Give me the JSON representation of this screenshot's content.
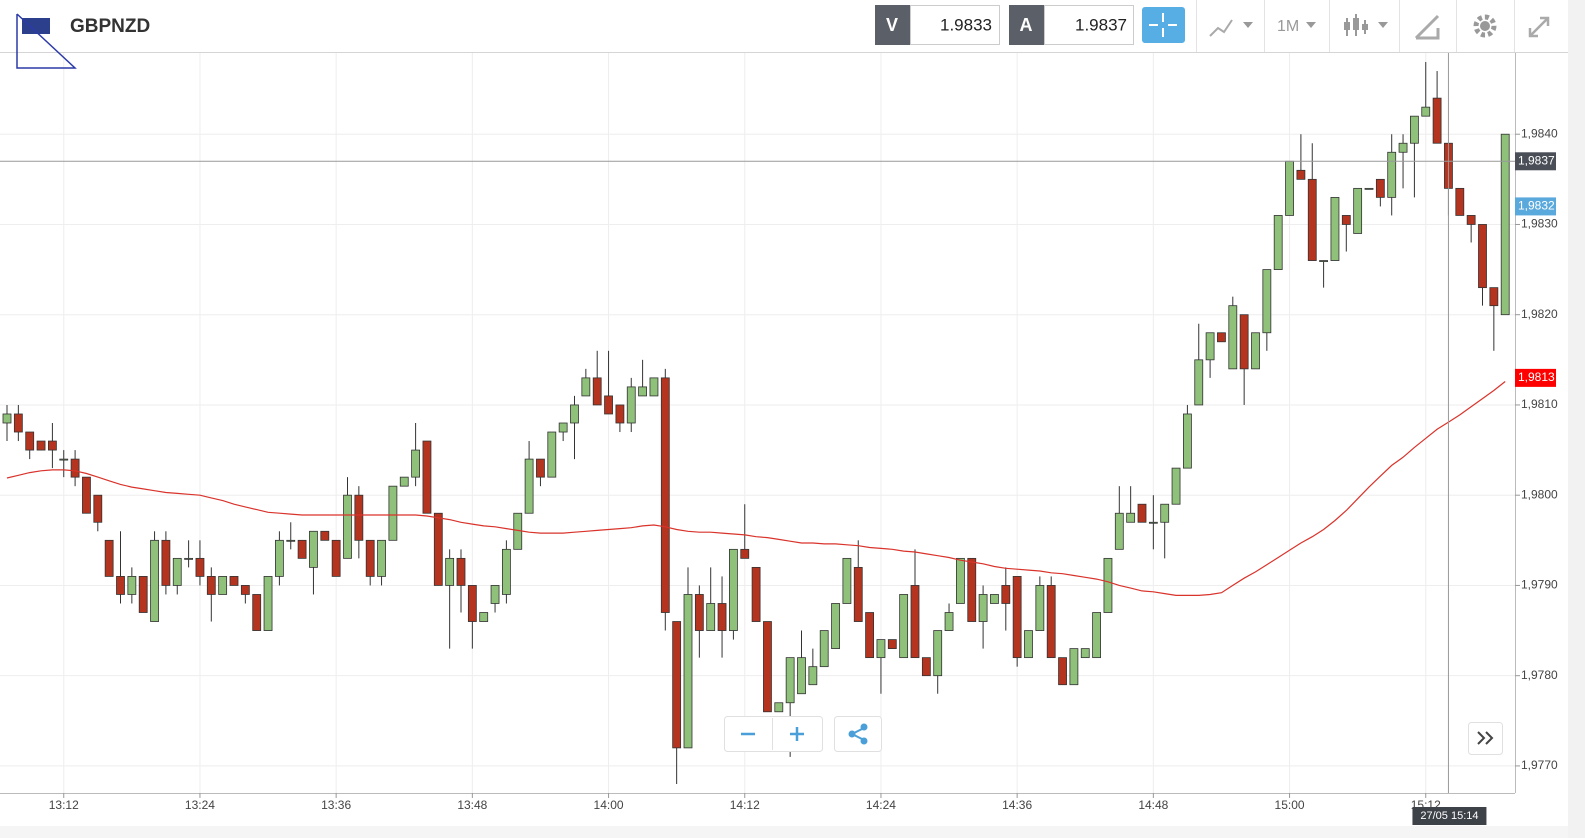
{
  "chart_data": {
    "type": "candlestick",
    "title": "GBPNZD",
    "bid_label": "V",
    "bid": 1.9833,
    "ask_label": "A",
    "ask": 1.9837,
    "timeframe": "1M",
    "up_color": "#8fc17a",
    "down_color": "#b5341f",
    "x": [
      "13:07",
      "13:08",
      "13:09",
      "13:10",
      "13:11",
      "13:12",
      "13:13",
      "13:14",
      "13:15",
      "13:16",
      "13:17",
      "13:18",
      "13:19",
      "13:20",
      "13:21",
      "13:22",
      "13:23",
      "13:24",
      "13:25",
      "13:26",
      "13:27",
      "13:28",
      "13:29",
      "13:30",
      "13:31",
      "13:32",
      "13:33",
      "13:34",
      "13:35",
      "13:36",
      "13:37",
      "13:38",
      "13:39",
      "13:40",
      "13:41",
      "13:42",
      "13:43",
      "13:44",
      "13:45",
      "13:46",
      "13:47",
      "13:48",
      "13:49",
      "13:50",
      "13:51",
      "13:52",
      "13:53",
      "13:54",
      "13:55",
      "13:56",
      "13:57",
      "13:58",
      "13:59",
      "14:00",
      "14:01",
      "14:02",
      "14:03",
      "14:04",
      "14:05",
      "14:06",
      "14:07",
      "14:08",
      "14:09",
      "14:10",
      "14:11",
      "14:12",
      "14:13",
      "14:14",
      "14:15",
      "14:16",
      "14:17",
      "14:18",
      "14:19",
      "14:20",
      "14:21",
      "14:22",
      "14:23",
      "14:24",
      "14:25",
      "14:26",
      "14:27",
      "14:28",
      "14:29",
      "14:30",
      "14:31",
      "14:32",
      "14:33",
      "14:34",
      "14:35",
      "14:36",
      "14:37",
      "14:38",
      "14:39",
      "14:40",
      "14:41",
      "14:42",
      "14:43",
      "14:44",
      "14:45",
      "14:46",
      "14:47",
      "14:48",
      "14:49",
      "14:50",
      "14:51",
      "14:52",
      "14:53",
      "14:54",
      "14:55",
      "14:56",
      "14:57",
      "14:58",
      "14:59",
      "15:00",
      "15:01",
      "15:02",
      "15:03",
      "15:04",
      "15:05",
      "15:06",
      "15:07",
      "15:08",
      "15:09",
      "15:10",
      "15:11",
      "15:12",
      "15:13",
      "15:14",
      "15:15",
      "15:16",
      "15:17",
      "15:18",
      "15:19"
    ],
    "open": [
      1.9808,
      1.9809,
      1.9807,
      1.9806,
      1.9806,
      1.9804,
      1.9804,
      1.9802,
      1.98,
      1.9795,
      1.9791,
      1.9789,
      1.9791,
      1.9786,
      1.9795,
      1.979,
      1.9793,
      1.9793,
      1.9791,
      1.9789,
      1.9791,
      1.979,
      1.9789,
      1.9785,
      1.9791,
      1.9795,
      1.9795,
      1.9792,
      1.9796,
      1.9795,
      1.9793,
      1.98,
      1.9795,
      1.9791,
      1.9795,
      1.9801,
      1.9802,
      1.9806,
      1.9798,
      1.979,
      1.9793,
      1.979,
      1.9786,
      1.9788,
      1.9789,
      1.9794,
      1.9798,
      1.9804,
      1.9802,
      1.9807,
      1.9808,
      1.9811,
      1.9813,
      1.9811,
      1.981,
      1.9808,
      1.9811,
      1.9811,
      1.9813,
      1.9786,
      1.9772,
      1.9789,
      1.9785,
      1.9788,
      1.9785,
      1.9794,
      1.9792,
      1.9786,
      1.9776,
      1.9777,
      1.9778,
      1.9779,
      1.9781,
      1.9783,
      1.9788,
      1.9792,
      1.9787,
      1.9782,
      1.9784,
      1.9782,
      1.979,
      1.9782,
      1.978,
      1.9785,
      1.9788,
      1.9793,
      1.9786,
      1.9788,
      1.979,
      1.9791,
      1.9782,
      1.9785,
      1.979,
      1.9782,
      1.9779,
      1.9782,
      1.9782,
      1.9787,
      1.9794,
      1.9797,
      1.9799,
      1.9797,
      1.9797,
      1.9799,
      1.9803,
      1.981,
      1.9815,
      1.9818,
      1.9814,
      1.982,
      1.9814,
      1.9818,
      1.9825,
      1.9831,
      1.9836,
      1.9835,
      1.9826,
      1.9826,
      1.9831,
      1.9829,
      1.9834,
      1.9835,
      1.9833,
      1.9838,
      1.9839,
      1.9842,
      1.9844,
      1.9839,
      1.9834,
      1.9831,
      1.983,
      1.9823,
      1.982
    ],
    "high": [
      1.981,
      1.981,
      1.9807,
      1.9806,
      1.9808,
      1.9805,
      1.9805,
      1.9802,
      1.98,
      1.9795,
      1.9796,
      1.9792,
      1.9791,
      1.9796,
      1.9796,
      1.9793,
      1.9795,
      1.9795,
      1.9792,
      1.9791,
      1.9791,
      1.979,
      1.9789,
      1.9791,
      1.9796,
      1.9797,
      1.9795,
      1.9796,
      1.9796,
      1.9795,
      1.9802,
      1.9801,
      1.9795,
      1.9795,
      1.9801,
      1.9802,
      1.9808,
      1.9806,
      1.9798,
      1.9794,
      1.9794,
      1.979,
      1.9787,
      1.979,
      1.9795,
      1.9798,
      1.9806,
      1.9804,
      1.9807,
      1.9808,
      1.9811,
      1.9814,
      1.9816,
      1.9816,
      1.981,
      1.9813,
      1.9815,
      1.9813,
      1.9814,
      1.9786,
      1.9792,
      1.979,
      1.9792,
      1.9791,
      1.9794,
      1.9799,
      1.9792,
      1.9786,
      1.9777,
      1.9782,
      1.9785,
      1.9783,
      1.9785,
      1.9788,
      1.9793,
      1.9795,
      1.9787,
      1.9784,
      1.9784,
      1.9789,
      1.9794,
      1.9782,
      1.9785,
      1.9788,
      1.9793,
      1.9793,
      1.979,
      1.9789,
      1.9792,
      1.9791,
      1.9785,
      1.9791,
      1.9791,
      1.9782,
      1.9783,
      1.9783,
      1.9787,
      1.9793,
      1.9801,
      1.9801,
      1.9799,
      1.98,
      1.9799,
      1.9803,
      1.981,
      1.9819,
      1.9818,
      1.9818,
      1.9822,
      1.982,
      1.9818,
      1.9825,
      1.9831,
      1.9837,
      1.984,
      1.9839,
      1.9826,
      1.9833,
      1.9831,
      1.9834,
      1.9834,
      1.9835,
      1.984,
      1.984,
      1.9842,
      1.9848,
      1.9847,
      1.9839,
      1.9834,
      1.9831,
      1.983,
      1.9823,
      1.984
    ],
    "low": [
      1.9806,
      1.9806,
      1.9804,
      1.9805,
      1.9803,
      1.9802,
      1.9801,
      1.9798,
      1.9796,
      1.9791,
      1.9788,
      1.9788,
      1.9787,
      1.9786,
      1.9789,
      1.9789,
      1.9792,
      1.979,
      1.9786,
      1.9789,
      1.979,
      1.9788,
      1.9785,
      1.9785,
      1.979,
      1.9794,
      1.9793,
      1.9789,
      1.9795,
      1.9791,
      1.9793,
      1.9793,
      1.979,
      1.979,
      1.9795,
      1.9801,
      1.9801,
      1.9798,
      1.979,
      1.9783,
      1.9787,
      1.9783,
      1.9786,
      1.9787,
      1.9788,
      1.9794,
      1.9798,
      1.9801,
      1.9802,
      1.9806,
      1.9804,
      1.9811,
      1.981,
      1.9809,
      1.9807,
      1.9807,
      1.9811,
      1.9811,
      1.9785,
      1.9768,
      1.9772,
      1.9782,
      1.9785,
      1.9782,
      1.9784,
      1.9793,
      1.9786,
      1.9776,
      1.9776,
      1.9771,
      1.9778,
      1.9779,
      1.9781,
      1.9783,
      1.9788,
      1.9786,
      1.9782,
      1.9778,
      1.9783,
      1.9782,
      1.9782,
      1.978,
      1.9778,
      1.9785,
      1.9788,
      1.9786,
      1.9783,
      1.9788,
      1.9785,
      1.9781,
      1.9782,
      1.9785,
      1.9782,
      1.9779,
      1.9779,
      1.9782,
      1.9782,
      1.9787,
      1.9794,
      1.9797,
      1.9797,
      1.9794,
      1.9793,
      1.9799,
      1.9803,
      1.981,
      1.9813,
      1.9817,
      1.9814,
      1.981,
      1.9814,
      1.9816,
      1.9825,
      1.9831,
      1.9835,
      1.9826,
      1.9823,
      1.9826,
      1.9827,
      1.9829,
      1.9834,
      1.9832,
      1.9831,
      1.9834,
      1.9833,
      1.9842,
      1.9839,
      1.9831,
      1.9831,
      1.9828,
      1.9821,
      1.9816,
      1.982
    ],
    "close": [
      1.9809,
      1.9807,
      1.9805,
      1.9805,
      1.9805,
      1.9804,
      1.9802,
      1.9798,
      1.9797,
      1.9791,
      1.9789,
      1.9791,
      1.9787,
      1.9795,
      1.979,
      1.9793,
      1.9793,
      1.9791,
      1.9789,
      1.9791,
      1.979,
      1.9789,
      1.9785,
      1.9791,
      1.9795,
      1.9795,
      1.9793,
      1.9796,
      1.9795,
      1.9791,
      1.98,
      1.9795,
      1.9791,
      1.9795,
      1.9801,
      1.9802,
      1.9805,
      1.9798,
      1.979,
      1.9793,
      1.979,
      1.9786,
      1.9787,
      1.979,
      1.9794,
      1.9798,
      1.9804,
      1.9802,
      1.9807,
      1.9808,
      1.981,
      1.9813,
      1.981,
      1.9809,
      1.9808,
      1.9812,
      1.9812,
      1.9813,
      1.9787,
      1.9772,
      1.9789,
      1.9785,
      1.9788,
      1.9785,
      1.9794,
      1.9793,
      1.9786,
      1.9776,
      1.9777,
      1.9782,
      1.9782,
      1.9781,
      1.9785,
      1.9788,
      1.9793,
      1.9786,
      1.9782,
      1.9784,
      1.9783,
      1.9789,
      1.9782,
      1.978,
      1.9785,
      1.9787,
      1.9793,
      1.9786,
      1.9789,
      1.9789,
      1.9788,
      1.9782,
      1.9785,
      1.979,
      1.9782,
      1.9779,
      1.9783,
      1.9783,
      1.9787,
      1.9793,
      1.9798,
      1.9798,
      1.9797,
      1.9797,
      1.9799,
      1.9803,
      1.9809,
      1.9815,
      1.9818,
      1.9817,
      1.9821,
      1.9814,
      1.9818,
      1.9825,
      1.9831,
      1.9837,
      1.9835,
      1.9826,
      1.9826,
      1.9833,
      1.983,
      1.9834,
      1.9834,
      1.9833,
      1.9838,
      1.9839,
      1.9842,
      1.9843,
      1.9839,
      1.9834,
      1.9831,
      1.983,
      1.9823,
      1.9821,
      1.984
    ],
    "moving_average": {
      "color": "#d9332b",
      "values": [
        1.98019,
        1.98022,
        1.98025,
        1.98027,
        1.98028,
        1.98028,
        1.98027,
        1.98024,
        1.9802,
        1.98016,
        1.98012,
        1.98009,
        1.98007,
        1.98005,
        1.98003,
        1.98002,
        1.98001,
        1.98,
        1.97997,
        1.97994,
        1.9799,
        1.97987,
        1.97984,
        1.97981,
        1.9798,
        1.97979,
        1.97978,
        1.97978,
        1.97978,
        1.97978,
        1.97978,
        1.97978,
        1.97978,
        1.97978,
        1.97978,
        1.97978,
        1.97978,
        1.97977,
        1.97975,
        1.97973,
        1.9797,
        1.97968,
        1.97966,
        1.97965,
        1.97963,
        1.97961,
        1.97959,
        1.97958,
        1.97958,
        1.97958,
        1.97959,
        1.9796,
        1.97961,
        1.97962,
        1.97963,
        1.97964,
        1.97966,
        1.97967,
        1.97965,
        1.97962,
        1.9796,
        1.97959,
        1.97959,
        1.97958,
        1.97957,
        1.97956,
        1.97954,
        1.97953,
        1.97951,
        1.97949,
        1.97947,
        1.97947,
        1.97946,
        1.97946,
        1.97945,
        1.97944,
        1.97942,
        1.97941,
        1.9794,
        1.97938,
        1.97937,
        1.97935,
        1.97933,
        1.97931,
        1.97928,
        1.97926,
        1.97924,
        1.97921,
        1.97919,
        1.97918,
        1.97917,
        1.97916,
        1.97914,
        1.97913,
        1.97911,
        1.97909,
        1.97907,
        1.97904,
        1.979,
        1.97897,
        1.97894,
        1.97893,
        1.97891,
        1.97889,
        1.97889,
        1.97889,
        1.9789,
        1.97892,
        1.979,
        1.97908,
        1.97915,
        1.97923,
        1.97931,
        1.97939,
        1.97947,
        1.97954,
        1.97962,
        1.97972,
        1.97983,
        1.97996,
        1.98009,
        1.98021,
        1.98033,
        1.98042,
        1.98053,
        1.98063,
        1.98073,
        1.98081,
        1.98089,
        1.98098,
        1.98107,
        1.98116,
        1.98126
      ]
    },
    "ylim": [
      1.9767,
      1.9849
    ],
    "yticks": [
      {
        "value": 1.977,
        "label": "1,9770"
      },
      {
        "value": 1.978,
        "label": "1,9780"
      },
      {
        "value": 1.979,
        "label": "1,9790"
      },
      {
        "value": 1.98,
        "label": "1,9800"
      },
      {
        "value": 1.981,
        "label": "1,9810"
      },
      {
        "value": 1.982,
        "label": "1,9820"
      },
      {
        "value": 1.983,
        "label": "1,9830"
      },
      {
        "value": 1.984,
        "label": "1,9840"
      }
    ],
    "xticks": [
      "13:12",
      "13:24",
      "13:36",
      "13:48",
      "14:00",
      "14:12",
      "14:24",
      "14:36",
      "14:48",
      "15:00",
      "15:12"
    ],
    "grid": true,
    "price_markers": [
      {
        "value": 1.9837,
        "label": "1,9837",
        "color": "#4a4f57"
      },
      {
        "value": 1.9832,
        "label": "1,9832",
        "color": "#5aa9dc"
      },
      {
        "value": 1.9813,
        "label": "1,9813",
        "color": "#ff0000"
      }
    ],
    "crosshair": {
      "x": "15:14",
      "label": "27/05 15:14"
    }
  }
}
